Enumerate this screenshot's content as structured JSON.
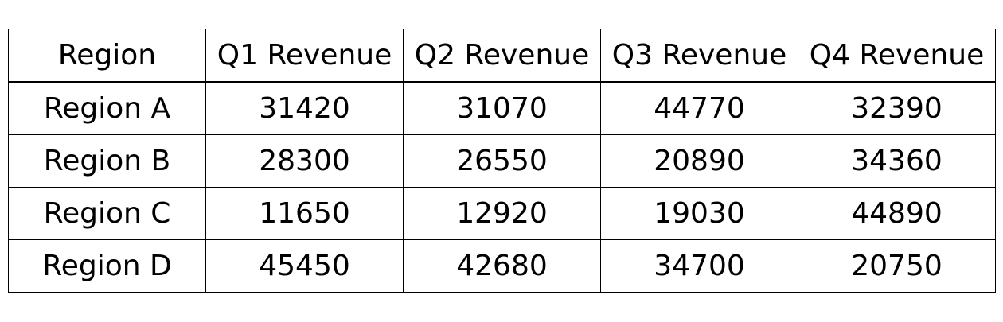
{
  "chart_data": {
    "type": "table",
    "columns": [
      "Region",
      "Q1 Revenue",
      "Q2 Revenue",
      "Q3 Revenue",
      "Q4 Revenue"
    ],
    "rows": [
      [
        "Region A",
        "31420",
        "31070",
        "44770",
        "32390"
      ],
      [
        "Region B",
        "28300",
        "26550",
        "20890",
        "34360"
      ],
      [
        "Region C",
        "11650",
        "12920",
        "19030",
        "44890"
      ],
      [
        "Region D",
        "45450",
        "42680",
        "34700",
        "20750"
      ]
    ]
  }
}
